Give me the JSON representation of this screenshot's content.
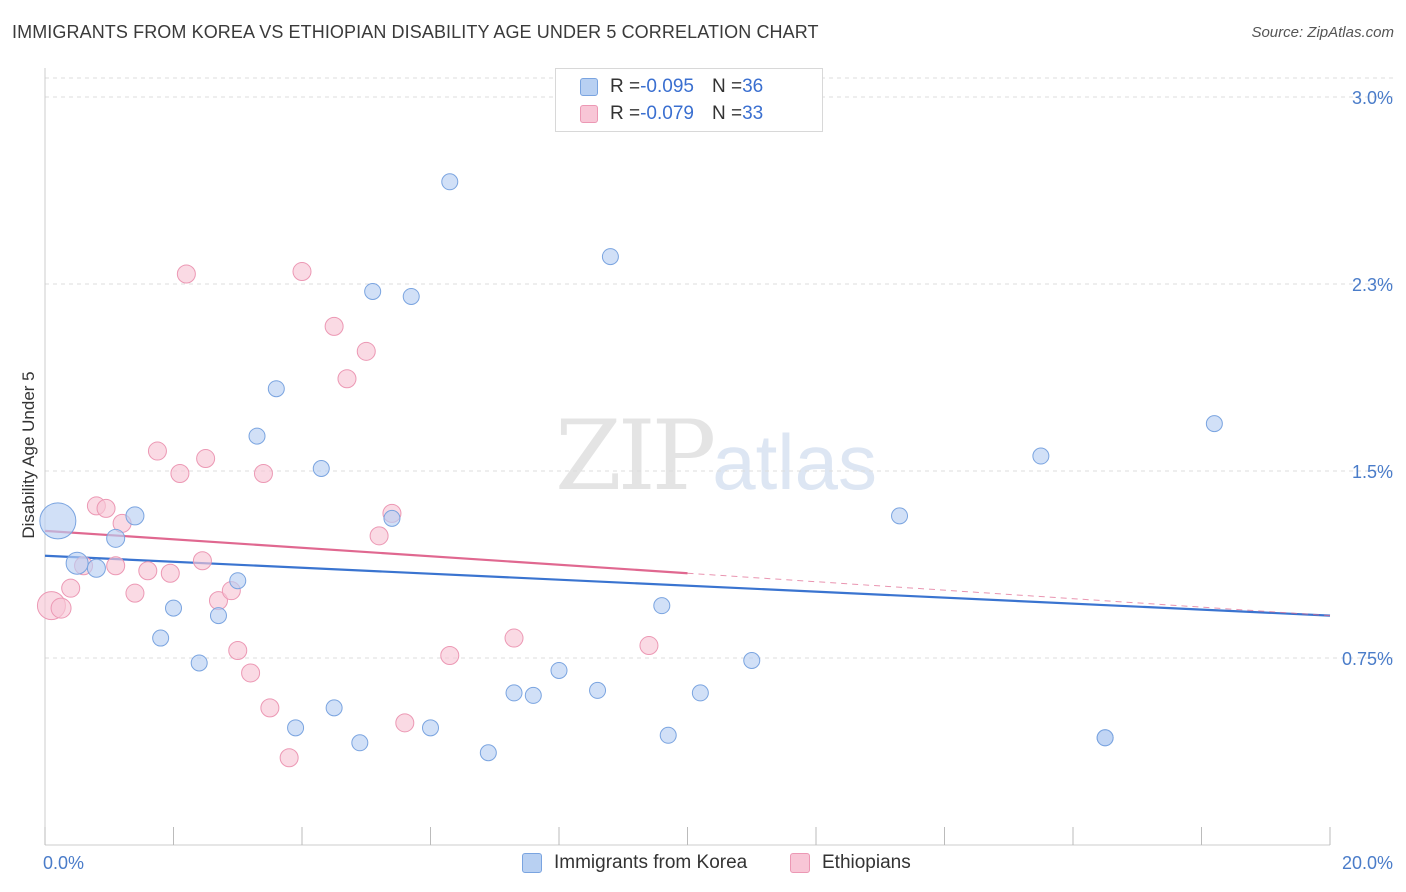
{
  "title": "IMMIGRANTS FROM KOREA VS ETHIOPIAN DISABILITY AGE UNDER 5 CORRELATION CHART",
  "source": "Source: ZipAtlas.com",
  "watermark": {
    "zip": "ZIP",
    "atlas": "atlas"
  },
  "legend_top": [
    {
      "r_label": "R = ",
      "r_value": "-0.095",
      "n_label": "N = ",
      "n_value": "36"
    },
    {
      "r_label": "R = ",
      "r_value": "-0.079",
      "n_label": "N = ",
      "n_value": "33"
    }
  ],
  "colors": {
    "korea_fill": "#b8d0f2",
    "korea_stroke": "#7aa4e0",
    "korea_line": "#3a74d0",
    "eth_fill": "#f8c6d6",
    "eth_stroke": "#ec98b4",
    "eth_line": "#e06890",
    "grid": "#dddddd",
    "tick": "#4a7cc9"
  },
  "chart_data": {
    "type": "scatter",
    "title": "IMMIGRANTS FROM KOREA VS ETHIOPIAN DISABILITY AGE UNDER 5 CORRELATION CHART",
    "xlabel": "",
    "ylabel": "Disability Age Under 5",
    "xlim": [
      0,
      20
    ],
    "ylim": [
      0,
      3.0
    ],
    "x_tick_labels": [
      "0.0%",
      "20.0%"
    ],
    "y_ticks": [
      0.75,
      1.5,
      2.25,
      3.0
    ],
    "y_tick_labels": [
      "0.75%",
      "1.5%",
      "2.3%",
      "3.0%"
    ],
    "grid": true,
    "legend_position": "top-center",
    "series": [
      {
        "name": "Immigrants from Korea",
        "r": -0.095,
        "n": 36,
        "trend": {
          "x0": 0,
          "y0": 1.16,
          "x1": 20,
          "y1": 0.92
        },
        "points": [
          [
            0.2,
            1.3,
            18
          ],
          [
            0.5,
            1.13,
            11
          ],
          [
            0.8,
            1.11,
            9
          ],
          [
            1.1,
            1.23,
            9
          ],
          [
            1.4,
            1.32,
            9
          ],
          [
            1.8,
            0.83,
            8
          ],
          [
            2.0,
            0.95,
            8
          ],
          [
            2.4,
            0.73,
            8
          ],
          [
            2.7,
            0.92,
            8
          ],
          [
            3.0,
            1.06,
            8
          ],
          [
            3.3,
            1.64,
            8
          ],
          [
            3.6,
            1.83,
            8
          ],
          [
            3.9,
            0.47,
            8
          ],
          [
            4.3,
            1.51,
            8
          ],
          [
            4.5,
            0.55,
            8
          ],
          [
            4.9,
            0.41,
            8
          ],
          [
            5.1,
            2.22,
            8
          ],
          [
            5.4,
            1.31,
            8
          ],
          [
            5.7,
            2.2,
            8
          ],
          [
            6.0,
            0.47,
            8
          ],
          [
            6.3,
            2.66,
            8
          ],
          [
            6.9,
            0.37,
            8
          ],
          [
            7.3,
            0.61,
            8
          ],
          [
            7.6,
            0.6,
            8
          ],
          [
            8.0,
            0.7,
            8
          ],
          [
            8.6,
            0.62,
            8
          ],
          [
            8.8,
            2.36,
            8
          ],
          [
            9.6,
            0.96,
            8
          ],
          [
            9.7,
            0.44,
            8
          ],
          [
            10.2,
            0.61,
            8
          ],
          [
            11.0,
            0.74,
            8
          ],
          [
            13.3,
            1.32,
            8
          ],
          [
            15.5,
            1.56,
            8
          ],
          [
            16.5,
            0.43,
            8
          ],
          [
            16.5,
            0.43,
            8
          ],
          [
            18.2,
            1.69,
            8
          ]
        ]
      },
      {
        "name": "Ethiopians",
        "r": -0.079,
        "n": 33,
        "trend": {
          "x0": 0,
          "y0": 1.26,
          "x1": 10,
          "y1": 1.09,
          "dash_to_x": 20,
          "dash_to_y": 0.92
        },
        "points": [
          [
            0.1,
            0.96,
            14
          ],
          [
            0.25,
            0.95,
            10
          ],
          [
            0.4,
            1.03,
            9
          ],
          [
            0.6,
            1.12,
            9
          ],
          [
            0.8,
            1.36,
            9
          ],
          [
            0.95,
            1.35,
            9
          ],
          [
            1.2,
            1.29,
            9
          ],
          [
            1.1,
            1.12,
            9
          ],
          [
            1.4,
            1.01,
            9
          ],
          [
            1.6,
            1.1,
            9
          ],
          [
            1.75,
            1.58,
            9
          ],
          [
            1.95,
            1.09,
            9
          ],
          [
            2.1,
            1.49,
            9
          ],
          [
            2.2,
            2.29,
            9
          ],
          [
            2.45,
            1.14,
            9
          ],
          [
            2.5,
            1.55,
            9
          ],
          [
            2.7,
            0.98,
            9
          ],
          [
            2.9,
            1.02,
            9
          ],
          [
            3.0,
            0.78,
            9
          ],
          [
            3.2,
            0.69,
            9
          ],
          [
            3.4,
            1.49,
            9
          ],
          [
            3.5,
            0.55,
            9
          ],
          [
            3.8,
            0.35,
            9
          ],
          [
            4.0,
            2.3,
            9
          ],
          [
            4.5,
            2.08,
            9
          ],
          [
            4.7,
            1.87,
            9
          ],
          [
            5.0,
            1.98,
            9
          ],
          [
            5.2,
            1.24,
            9
          ],
          [
            5.4,
            1.33,
            9
          ],
          [
            5.6,
            0.49,
            9
          ],
          [
            6.3,
            0.76,
            9
          ],
          [
            7.3,
            0.83,
            9
          ],
          [
            9.4,
            0.8,
            9
          ]
        ]
      }
    ]
  }
}
